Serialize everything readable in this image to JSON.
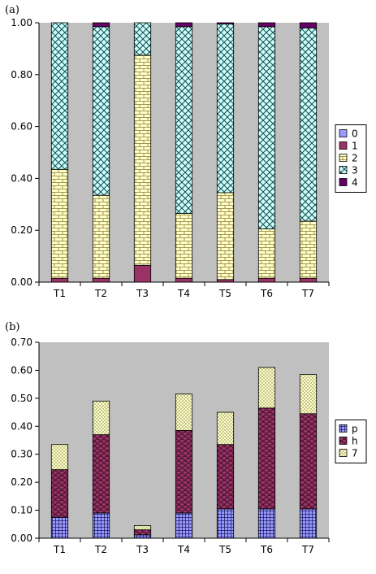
{
  "chart_data": [
    {
      "type": "bar",
      "stacked": true,
      "panel_label": "(a)",
      "categories": [
        "T1",
        "T2",
        "T3",
        "T4",
        "T5",
        "T6",
        "T7"
      ],
      "ylim": [
        0,
        1.0
      ],
      "yticks": [
        "0.00",
        "0.20",
        "0.40",
        "0.60",
        "0.80",
        "1.00"
      ],
      "ytick_values": [
        0,
        0.2,
        0.4,
        0.6,
        0.8,
        1.0
      ],
      "legend_position": "right",
      "series": [
        {
          "name": "0",
          "values": [
            0.0,
            0.0,
            0.0,
            0.0,
            0.0,
            0.0,
            0.0
          ],
          "color": "#9999ff",
          "pattern": "plain"
        },
        {
          "name": "1",
          "values": [
            0.015,
            0.015,
            0.065,
            0.015,
            0.01,
            0.015,
            0.015
          ],
          "color": "#993366",
          "pattern": "plain"
        },
        {
          "name": "2",
          "values": [
            0.42,
            0.32,
            0.81,
            0.25,
            0.335,
            0.19,
            0.22
          ],
          "color": "#ffffcc",
          "pattern": "brick"
        },
        {
          "name": "3",
          "values": [
            0.565,
            0.65,
            0.125,
            0.72,
            0.65,
            0.78,
            0.745
          ],
          "color": "#ccffff",
          "pattern": "cross"
        },
        {
          "name": "4",
          "values": [
            0.0,
            0.015,
            0.0,
            0.015,
            0.005,
            0.015,
            0.02
          ],
          "color": "#660066",
          "pattern": "plain"
        }
      ]
    },
    {
      "type": "bar",
      "stacked": true,
      "panel_label": "(b)",
      "categories": [
        "T1",
        "T2",
        "T3",
        "T4",
        "T5",
        "T6",
        "T7"
      ],
      "ylim": [
        0,
        0.7
      ],
      "yticks": [
        "0.00",
        "0.10",
        "0.20",
        "0.30",
        "0.40",
        "0.50",
        "0.60",
        "0.70"
      ],
      "ytick_values": [
        0,
        0.1,
        0.2,
        0.3,
        0.4,
        0.5,
        0.6,
        0.7
      ],
      "legend_position": "right",
      "series": [
        {
          "name": "p",
          "values": [
            0.075,
            0.09,
            0.012,
            0.09,
            0.105,
            0.105,
            0.105
          ],
          "color": "#9999ff",
          "pattern": "grid"
        },
        {
          "name": "h",
          "values": [
            0.17,
            0.28,
            0.018,
            0.295,
            0.23,
            0.36,
            0.34
          ],
          "color": "#993366",
          "pattern": "scale"
        },
        {
          "name": "7",
          "values": [
            0.09,
            0.12,
            0.015,
            0.13,
            0.115,
            0.145,
            0.14
          ],
          "color": "#ffffcc",
          "pattern": "dots"
        }
      ]
    }
  ]
}
